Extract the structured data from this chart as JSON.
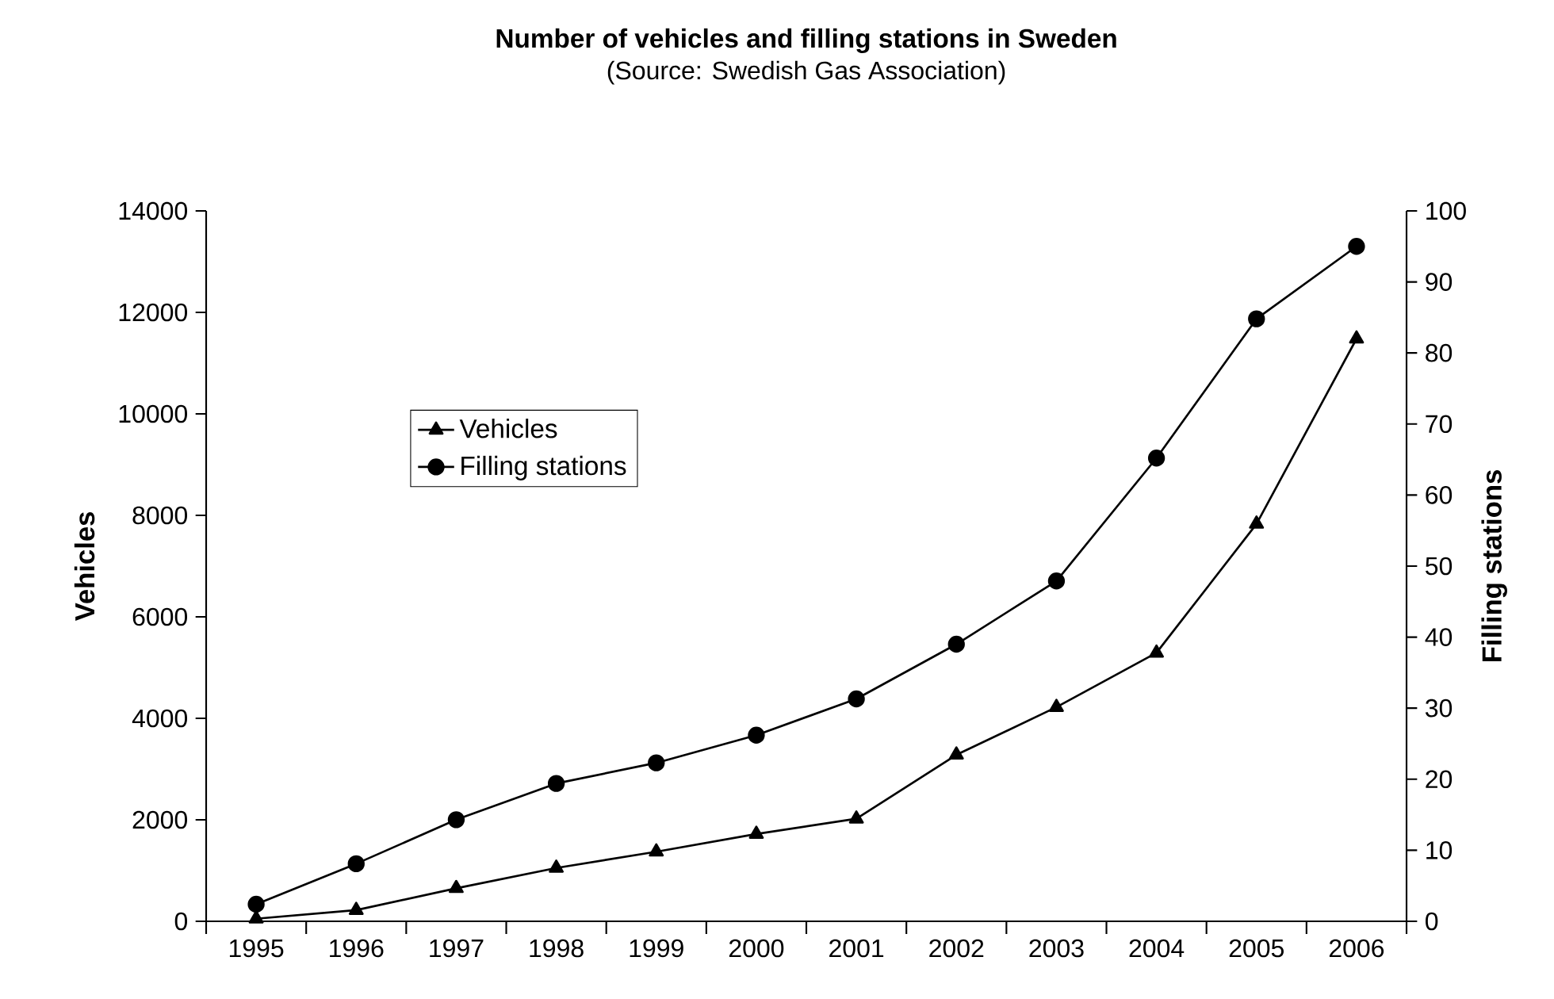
{
  "chart_data": {
    "type": "line",
    "title": "Number of vehicles and filling stations in Sweden",
    "subtitle": "(Source: Swedish Gas Association)",
    "categories": [
      "1995",
      "1996",
      "1997",
      "1998",
      "1999",
      "2000",
      "2001",
      "2002",
      "2003",
      "2004",
      "2005",
      "2006"
    ],
    "ylabel": "Vehicles",
    "y2label": "Filling stations",
    "ylim": [
      0,
      14000
    ],
    "yticks": [
      0,
      2000,
      4000,
      6000,
      8000,
      10000,
      12000,
      14000
    ],
    "y2lim": [
      0,
      100
    ],
    "y2ticks": [
      0,
      10,
      20,
      30,
      40,
      50,
      60,
      70,
      80,
      90,
      100
    ],
    "grid": false,
    "legend": "left",
    "line_style": "solid",
    "series": [
      {
        "name": "Vehicles",
        "color": "#000000",
        "marker": "triangle",
        "values": [
          50,
          220,
          650,
          1050,
          1370,
          1720,
          2020,
          3280,
          4220,
          5290,
          7830,
          11480
        ]
      },
      {
        "name": "Filling stations",
        "color": "#000000",
        "marker": "circle",
        "axis": "y2",
        "values": [
          2.4,
          8.1,
          14.3,
          19.4,
          22.3,
          26.2,
          31.3,
          39.0,
          47.9,
          65.2,
          84.8,
          95
        ]
      }
    ]
  }
}
